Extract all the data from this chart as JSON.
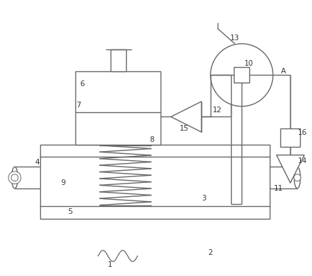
{
  "bg_color": "#ffffff",
  "line_color": "#666666",
  "line_width": 1.0,
  "label_fontsize": 7.5,
  "label_color": "#333333",
  "fig_width": 4.43,
  "fig_height": 3.91
}
